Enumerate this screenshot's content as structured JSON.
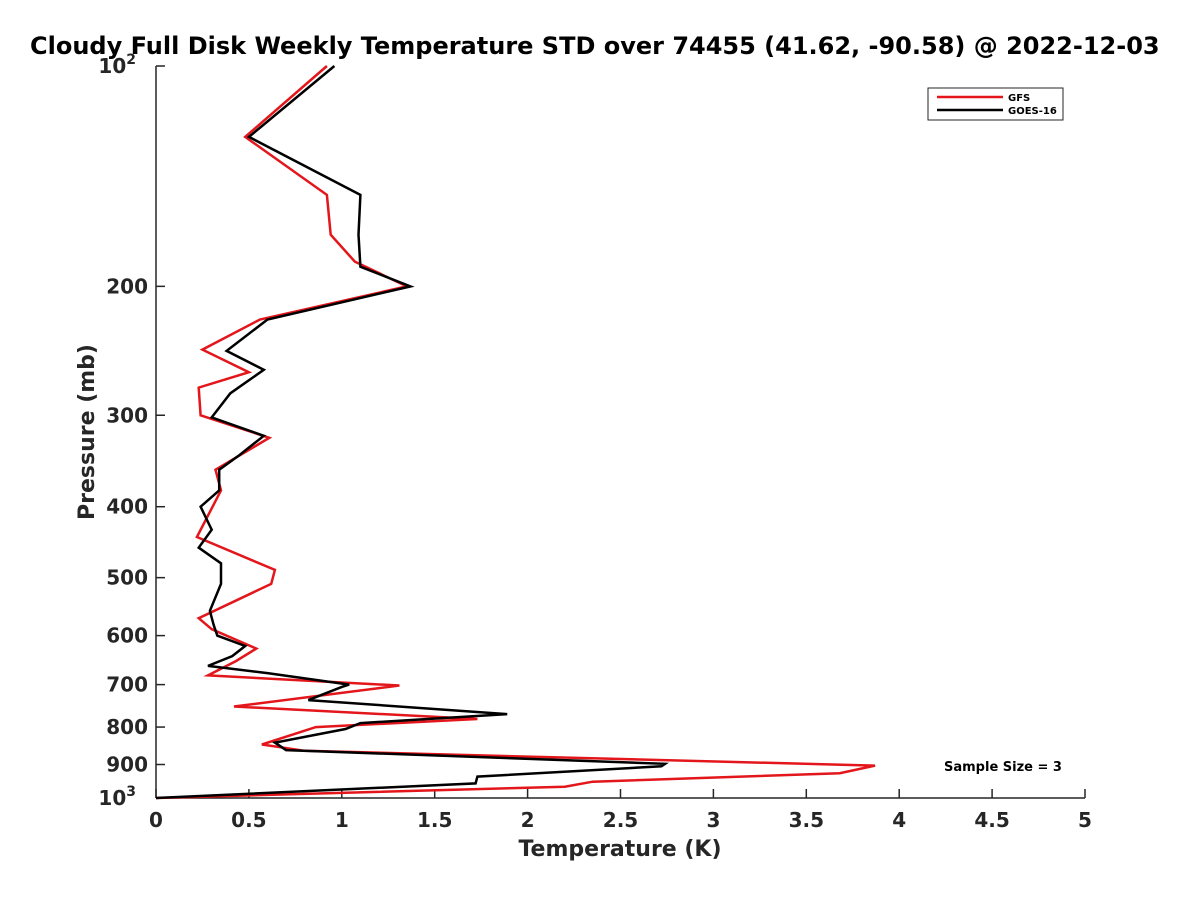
{
  "chart_data": {
    "type": "line",
    "title": "Cloudy Full Disk Weekly Temperature STD over 74455 (41.62, -90.58) @ 2022-12-03",
    "xlabel": "Temperature (K)",
    "ylabel": "Pressure (mb)",
    "xlim": [
      0,
      5
    ],
    "ylim": [
      100,
      1000
    ],
    "yscale": "log",
    "yreversed": true,
    "grid": false,
    "legend_position": "top-right",
    "x_ticks": [
      {
        "value": 0,
        "label": "0"
      },
      {
        "value": 0.5,
        "label": "0.5"
      },
      {
        "value": 1,
        "label": "1"
      },
      {
        "value": 1.5,
        "label": "1.5"
      },
      {
        "value": 2,
        "label": "2"
      },
      {
        "value": 2.5,
        "label": "2.5"
      },
      {
        "value": 3,
        "label": "3"
      },
      {
        "value": 3.5,
        "label": "3.5"
      },
      {
        "value": 4,
        "label": "4"
      },
      {
        "value": 4.5,
        "label": "4.5"
      },
      {
        "value": 5,
        "label": "5"
      }
    ],
    "y_ticks": [
      {
        "value": 100,
        "label": "10",
        "sup": "2"
      },
      {
        "value": 200,
        "label": "200"
      },
      {
        "value": 300,
        "label": "300"
      },
      {
        "value": 400,
        "label": "400"
      },
      {
        "value": 500,
        "label": "500"
      },
      {
        "value": 600,
        "label": "600"
      },
      {
        "value": 700,
        "label": "700"
      },
      {
        "value": 800,
        "label": "800"
      },
      {
        "value": 900,
        "label": "900"
      },
      {
        "value": 1000,
        "label": "10",
        "sup": "3"
      }
    ],
    "annotation": "Sample Size = 3",
    "series": [
      {
        "name": "GFS",
        "color": "#e3161b",
        "points": [
          [
            0.92,
            100
          ],
          [
            0.48,
            125
          ],
          [
            0.92,
            150
          ],
          [
            0.94,
            170
          ],
          [
            1.07,
            185
          ],
          [
            1.35,
            200
          ],
          [
            0.56,
            222
          ],
          [
            0.25,
            244
          ],
          [
            0.5,
            262
          ],
          [
            0.23,
            275
          ],
          [
            0.24,
            300
          ],
          [
            0.61,
            322
          ],
          [
            0.32,
            356
          ],
          [
            0.35,
            380
          ],
          [
            0.22,
            440
          ],
          [
            0.64,
            488
          ],
          [
            0.62,
            510
          ],
          [
            0.23,
            568
          ],
          [
            0.3,
            588
          ],
          [
            0.54,
            625
          ],
          [
            0.43,
            650
          ],
          [
            0.28,
            680
          ],
          [
            1.31,
            702
          ],
          [
            0.42,
            750
          ],
          [
            1.73,
            780
          ],
          [
            0.86,
            800
          ],
          [
            0.57,
            845
          ],
          [
            0.8,
            862
          ],
          [
            3.87,
            903
          ],
          [
            3.68,
            925
          ],
          [
            2.35,
            950
          ],
          [
            2.2,
            965
          ],
          [
            0.0,
            1000
          ]
        ]
      },
      {
        "name": "GOES-16",
        "color": "#000000",
        "points": [
          [
            0.96,
            100
          ],
          [
            0.5,
            125
          ],
          [
            1.1,
            150
          ],
          [
            1.09,
            170
          ],
          [
            1.1,
            188
          ],
          [
            1.37,
            200
          ],
          [
            0.6,
            222
          ],
          [
            0.38,
            245
          ],
          [
            0.58,
            260
          ],
          [
            0.4,
            280
          ],
          [
            0.3,
            302
          ],
          [
            0.58,
            320
          ],
          [
            0.45,
            340
          ],
          [
            0.34,
            356
          ],
          [
            0.34,
            380
          ],
          [
            0.24,
            400
          ],
          [
            0.3,
            430
          ],
          [
            0.23,
            455
          ],
          [
            0.35,
            478
          ],
          [
            0.35,
            510
          ],
          [
            0.29,
            555
          ],
          [
            0.31,
            580
          ],
          [
            0.33,
            600
          ],
          [
            0.48,
            620
          ],
          [
            0.41,
            640
          ],
          [
            0.28,
            660
          ],
          [
            0.6,
            675
          ],
          [
            1.04,
            700
          ],
          [
            1.0,
            705
          ],
          [
            0.82,
            735
          ],
          [
            1.89,
            768
          ],
          [
            1.1,
            790
          ],
          [
            1.02,
            805
          ],
          [
            0.64,
            840
          ],
          [
            0.7,
            860
          ],
          [
            2.74,
            898
          ],
          [
            2.72,
            905
          ],
          [
            1.73,
            935
          ],
          [
            1.72,
            955
          ],
          [
            0.0,
            1000
          ]
        ]
      }
    ]
  }
}
